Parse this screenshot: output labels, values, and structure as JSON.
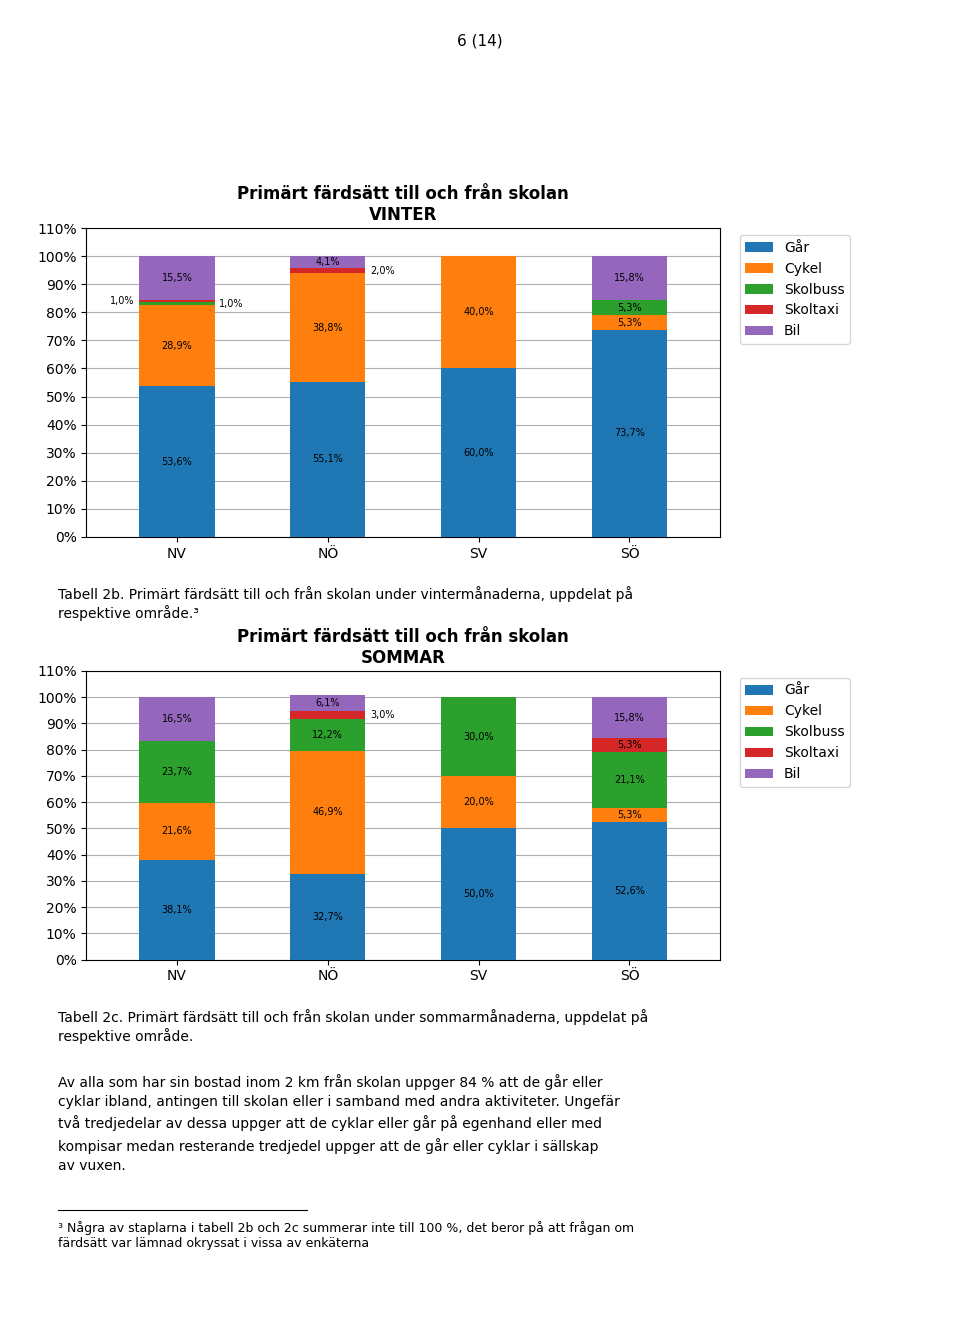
{
  "chart_data": [
    {
      "type": "bar",
      "stacked": true,
      "data_labels": true,
      "grid": true,
      "legend": "upper left",
      "title": "Primärt färdsätt till och från skolan\nVINTER",
      "categories": [
        "NV",
        "NÖ",
        "SV",
        "SÖ"
      ],
      "series": [
        {
          "name": "Går",
          "values": [
            53.6,
            55.1,
            60.0,
            73.7
          ],
          "value_labels": [
            "53,6%",
            "55,1%",
            "60,0%",
            "73,7%"
          ]
        },
        {
          "name": "Cykel",
          "values": [
            28.9,
            38.8,
            40.0,
            5.3
          ],
          "value_labels": [
            "28,9%",
            "38,8%",
            "40,0%",
            "5,3%"
          ]
        },
        {
          "name": "Skolbuss",
          "values": [
            1.0,
            0.0,
            0.0,
            5.3
          ],
          "value_labels": [
            "1,0%",
            null,
            null,
            "5,3%"
          ]
        },
        {
          "name": "Skoltaxi",
          "values": [
            1.0,
            2.0,
            0.0,
            0.0
          ],
          "value_labels": [
            "1,0%",
            "2,0%",
            null,
            null
          ]
        },
        {
          "name": "Bil",
          "values": [
            15.5,
            4.1,
            0.0,
            15.8
          ],
          "value_labels": [
            "15,5%",
            "4,1%",
            null,
            "15,8%"
          ]
        }
      ],
      "ylim": [
        0,
        110
      ],
      "yticks": [
        {
          "value": 0,
          "label": "0%"
        },
        {
          "value": 10,
          "label": "10%"
        },
        {
          "value": 20,
          "label": "20%"
        },
        {
          "value": 30,
          "label": "30%"
        },
        {
          "value": 40,
          "label": "40%"
        },
        {
          "value": 50,
          "label": "50%"
        },
        {
          "value": 60,
          "label": "60%"
        },
        {
          "value": 70,
          "label": "70%"
        },
        {
          "value": 80,
          "label": "80%"
        },
        {
          "value": 90,
          "label": "90%"
        },
        {
          "value": 100,
          "label": "100%"
        },
        {
          "value": 110,
          "label": "110%"
        }
      ]
    },
    {
      "type": "bar",
      "stacked": true,
      "data_labels": true,
      "grid": true,
      "legend": "upper left",
      "title": "Primärt färdsätt till och från skolan\nSOMMAR",
      "categories": [
        "NV",
        "NÖ",
        "SV",
        "SÖ"
      ],
      "series": [
        {
          "name": "Går",
          "values": [
            38.1,
            32.7,
            50.0,
            52.6
          ],
          "value_labels": [
            "38,1%",
            "32,7%",
            "50,0%",
            "52,6%"
          ]
        },
        {
          "name": "Cykel",
          "values": [
            21.6,
            46.9,
            20.0,
            5.3
          ],
          "value_labels": [
            "21,6%",
            "46,9%",
            "20,0%",
            "5,3%"
          ]
        },
        {
          "name": "Skolbuss",
          "values": [
            23.7,
            12.2,
            30.0,
            21.1
          ],
          "value_labels": [
            "23,7%",
            "12,2%",
            "30,0%",
            "21,1%"
          ]
        },
        {
          "name": "Skoltaxi",
          "values": [
            0.0,
            3.0,
            0.0,
            5.3
          ],
          "value_labels": [
            null,
            "3,0%",
            null,
            "5,3%"
          ]
        },
        {
          "name": "Bil",
          "values": [
            16.5,
            6.1,
            0.0,
            15.8
          ],
          "value_labels": [
            "16,5%",
            "6,1%",
            null,
            "15,8%"
          ]
        }
      ],
      "ylim": [
        0,
        110
      ],
      "yticks": [
        {
          "value": 0,
          "label": "0%"
        },
        {
          "value": 10,
          "label": "10%"
        },
        {
          "value": 20,
          "label": "20%"
        },
        {
          "value": 30,
          "label": "30%"
        },
        {
          "value": 40,
          "label": "40%"
        },
        {
          "value": 50,
          "label": "50%"
        },
        {
          "value": 60,
          "label": "60%"
        },
        {
          "value": 70,
          "label": "70%"
        },
        {
          "value": 80,
          "label": "80%"
        },
        {
          "value": 90,
          "label": "90%"
        },
        {
          "value": 100,
          "label": "100%"
        },
        {
          "value": 110,
          "label": "110%"
        }
      ]
    }
  ],
  "annotations": [
    "6 (14)",
    "Tabell 2b. Primärt färdsätt till och från skolan under vintermånaderna, uppdelat på\nrespektive område.³",
    "Tabell 2c. Primärt färdsätt till och från skolan under sommarmånaderna, uppdelat på\nrespektive område.",
    "Av alla som har sin bostad inom 2 km från skolan uppger 84 % att de går eller\ncyklar ibland, antingen till skolan eller i samband med andra aktiviteter. Ungefär\ntvå tredjedelar av dessa uppger att de cyklar eller går på egenhand eller med\nkompisar medan resterande tredjedel uppger att de går eller cyklar i sällskap\nav vuxen.",
    "³ Några av staplarna i tabell 2b och 2c summerar inte till 100 %, det beror på att frågan om\nfärdsätt var lämnad okryssat i vissa av enkäterna"
  ]
}
